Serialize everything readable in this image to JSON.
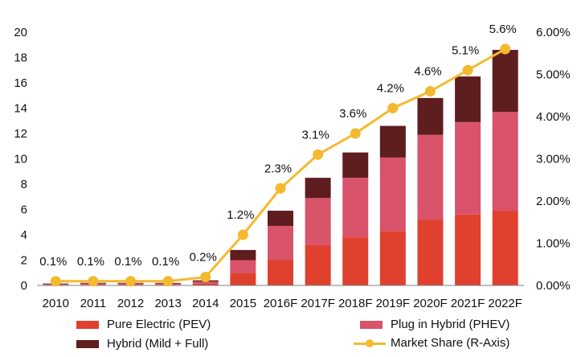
{
  "chart_data": {
    "type": "bar",
    "stacked": true,
    "categories": [
      "2010",
      "2011",
      "2012",
      "2013",
      "2014",
      "2015",
      "2016F",
      "2017F",
      "2018F",
      "2019F",
      "2020F",
      "2021F",
      "2022F"
    ],
    "series": [
      {
        "name": "Pure Electric (PEV)",
        "color": "#e0402e",
        "values": [
          0.05,
          0.05,
          0.05,
          0.05,
          0.15,
          1.0,
          2.0,
          3.2,
          3.8,
          4.3,
          5.2,
          5.6,
          5.9
        ]
      },
      {
        "name": "Plug in Hybrid (PHEV)",
        "color": "#d9536b",
        "values": [
          0.05,
          0.1,
          0.1,
          0.1,
          0.15,
          1.0,
          2.7,
          3.7,
          4.7,
          5.8,
          6.7,
          7.3,
          7.8
        ]
      },
      {
        "name": "Hybrid (Mild + Full)",
        "color": "#5e1d1f",
        "values": [
          0.05,
          0.05,
          0.05,
          0.05,
          0.1,
          0.8,
          1.2,
          1.6,
          2.0,
          2.5,
          2.9,
          3.6,
          4.9
        ]
      }
    ],
    "line_series": {
      "name": "Market Share (R-Axis)",
      "color": "#f4b92e",
      "axis": "right",
      "values": [
        0.1,
        0.1,
        0.1,
        0.1,
        0.2,
        1.2,
        2.3,
        3.1,
        3.6,
        4.2,
        4.6,
        5.1,
        5.6
      ],
      "labels": [
        "0.1%",
        "0.1%",
        "0.1%",
        "0.1%",
        "0.2%",
        "1.2%",
        "2.3%",
        "3.1%",
        "3.6%",
        "4.2%",
        "4.6%",
        "5.1%",
        "5.6%"
      ]
    },
    "y_left": {
      "min": 0,
      "max": 20,
      "ticks": [
        "0",
        "2",
        "4",
        "6",
        "8",
        "10",
        "12",
        "14",
        "16",
        "18",
        "20"
      ]
    },
    "y_right": {
      "min": 0,
      "max": 6,
      "ticks": [
        "0.00%",
        "1.00%",
        "2.00%",
        "3.00%",
        "4.00%",
        "5.00%",
        "6.00%"
      ]
    },
    "title": "",
    "xlabel": "",
    "ylabel": ""
  }
}
